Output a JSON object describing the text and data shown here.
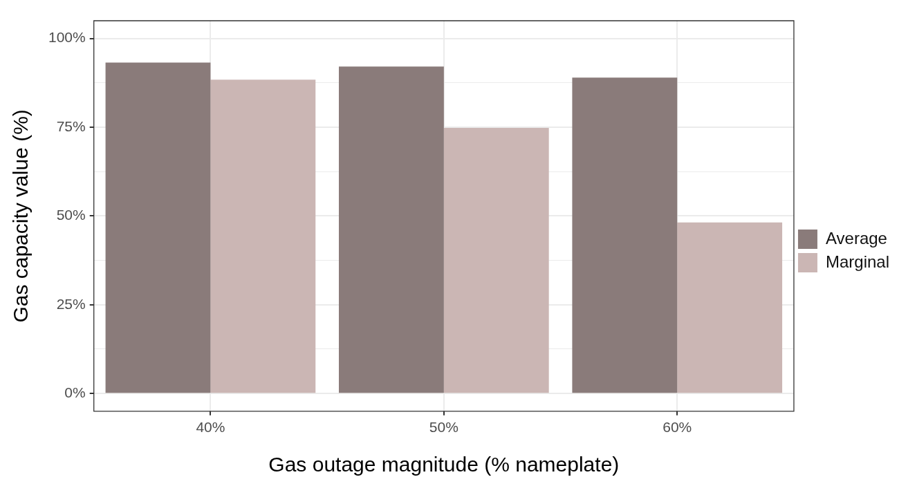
{
  "chart_data": {
    "type": "bar",
    "xlabel": "Gas outage magnitude (% nameplate)",
    "ylabel": "Gas capacity value (%)",
    "categories": [
      "40%",
      "50%",
      "60%"
    ],
    "series": [
      {
        "name": "Average",
        "color": "#8a7b7a",
        "values": [
          93.2,
          92.1,
          89.0
        ]
      },
      {
        "name": "Marginal",
        "color": "#cbb6b4",
        "values": [
          88.4,
          74.8,
          48.2
        ]
      }
    ],
    "ylim": [
      -5,
      105
    ],
    "yticks": [
      {
        "value": 0,
        "label": "0%"
      },
      {
        "value": 12.5,
        "label": null
      },
      {
        "value": 25,
        "label": "25%"
      },
      {
        "value": 37.5,
        "label": null
      },
      {
        "value": 50,
        "label": "50%"
      },
      {
        "value": 62.5,
        "label": null
      },
      {
        "value": 75,
        "label": "75%"
      },
      {
        "value": 87.5,
        "label": null
      },
      {
        "value": 100,
        "label": "100%"
      }
    ],
    "grid": true,
    "legend": "right"
  }
}
